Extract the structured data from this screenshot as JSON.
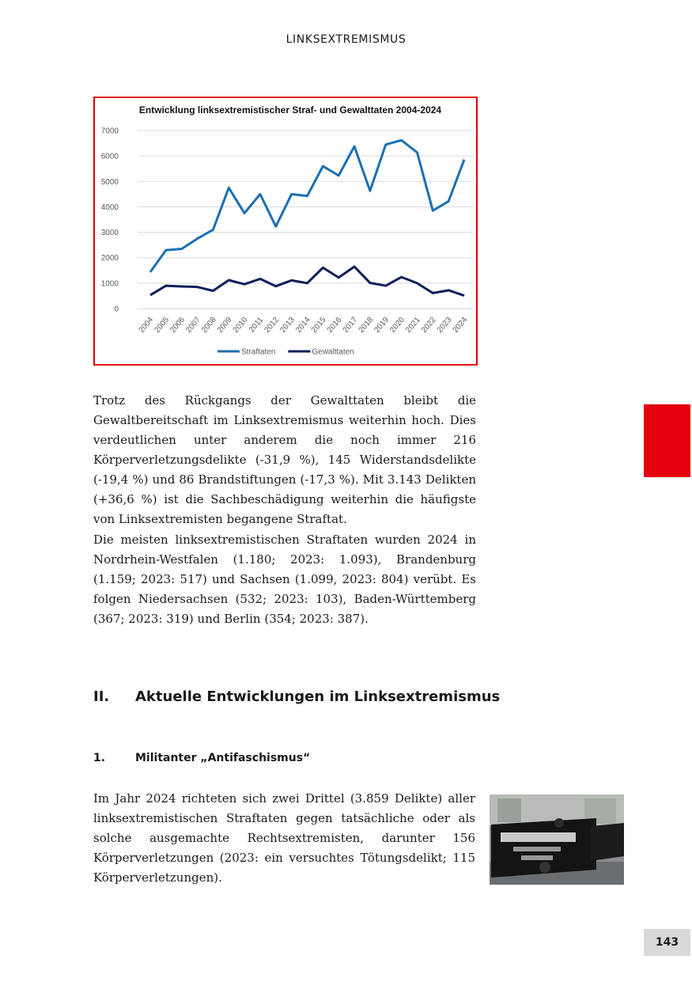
{
  "header": "LINKSEXTREMISMUS",
  "chart_data": {
    "type": "line",
    "title": "Entwicklung linksextremistischer Straf- und Gewalttaten 2004-2024",
    "categories": [
      "2004",
      "2005",
      "2006",
      "2007",
      "2008",
      "2009",
      "2010",
      "2011",
      "2012",
      "2013",
      "2014",
      "2015",
      "2016",
      "2017",
      "2018",
      "2019",
      "2020",
      "2021",
      "2022",
      "2023",
      "2024"
    ],
    "series": [
      {
        "name": "Straftaten",
        "color": "#1b6fb3",
        "values": [
          1440,
          2300,
          2350,
          2750,
          3100,
          4750,
          3750,
          4500,
          3230,
          4500,
          4430,
          5600,
          5230,
          6380,
          4630,
          6450,
          6620,
          6140,
          3850,
          4220,
          5860
        ]
      },
      {
        "name": "Gewalttaten",
        "color": "#0e1f5b",
        "values": [
          530,
          900,
          870,
          850,
          700,
          1120,
          960,
          1170,
          880,
          1110,
          1000,
          1610,
          1220,
          1650,
          1010,
          900,
          1240,
          1000,
          610,
          720,
          510
        ]
      }
    ],
    "ylim": [
      0,
      7000
    ],
    "yticks": [
      0,
      1000,
      2000,
      3000,
      4000,
      5000,
      6000,
      7000
    ],
    "grid": true,
    "legend": "bottom"
  },
  "paragraphs": [
    "Trotz des Rückgangs der Gewalttaten bleibt die Gewaltbereitschaft im Linksextremismus weiterhin hoch. Dies verdeutlichen unter anderem die noch immer 216 Körperverletzungsdelikte (-31,9 %), 145 Widerstandsdelikte (-19,4 %) und 86 Brandstiftungen (-17,3 %). Mit 3.143 Delikten (+36,6 %) ist die Sachbeschädigung weiterhin die häufigste von Linksextremisten begangene Straftat.",
    "Die meisten linksextremistischen Straftaten wurden 2024 in Nordrhein-Westfalen (1.180; 2023: 1.093), Brandenburg (1.159; 2023: 517) und Sachsen (1.099, 2023: 804) verübt. Es folgen Niedersachsen (532; 2023: 103), Baden-Württemberg (367; 2023: 319) und Berlin (354; 2023: 387).",
    "Im Jahr 2024 richteten sich zwei Drittel (3.859 Delikte) aller linksextremistischen Straftaten gegen tatsächliche oder als solche ausgemachte Rechtsextremisten, darunter 156 Körperverletzungen (2023: ein versuchtes Tötungsdelikt; 115 Körperverletzungen)."
  ],
  "section_heading": {
    "number": "II.",
    "title": "Aktuelle Entwicklungen im Linksextremismus"
  },
  "subsection_heading": {
    "number": "1.",
    "title": "Militanter „Antifaschismus“"
  },
  "page_number": "143"
}
